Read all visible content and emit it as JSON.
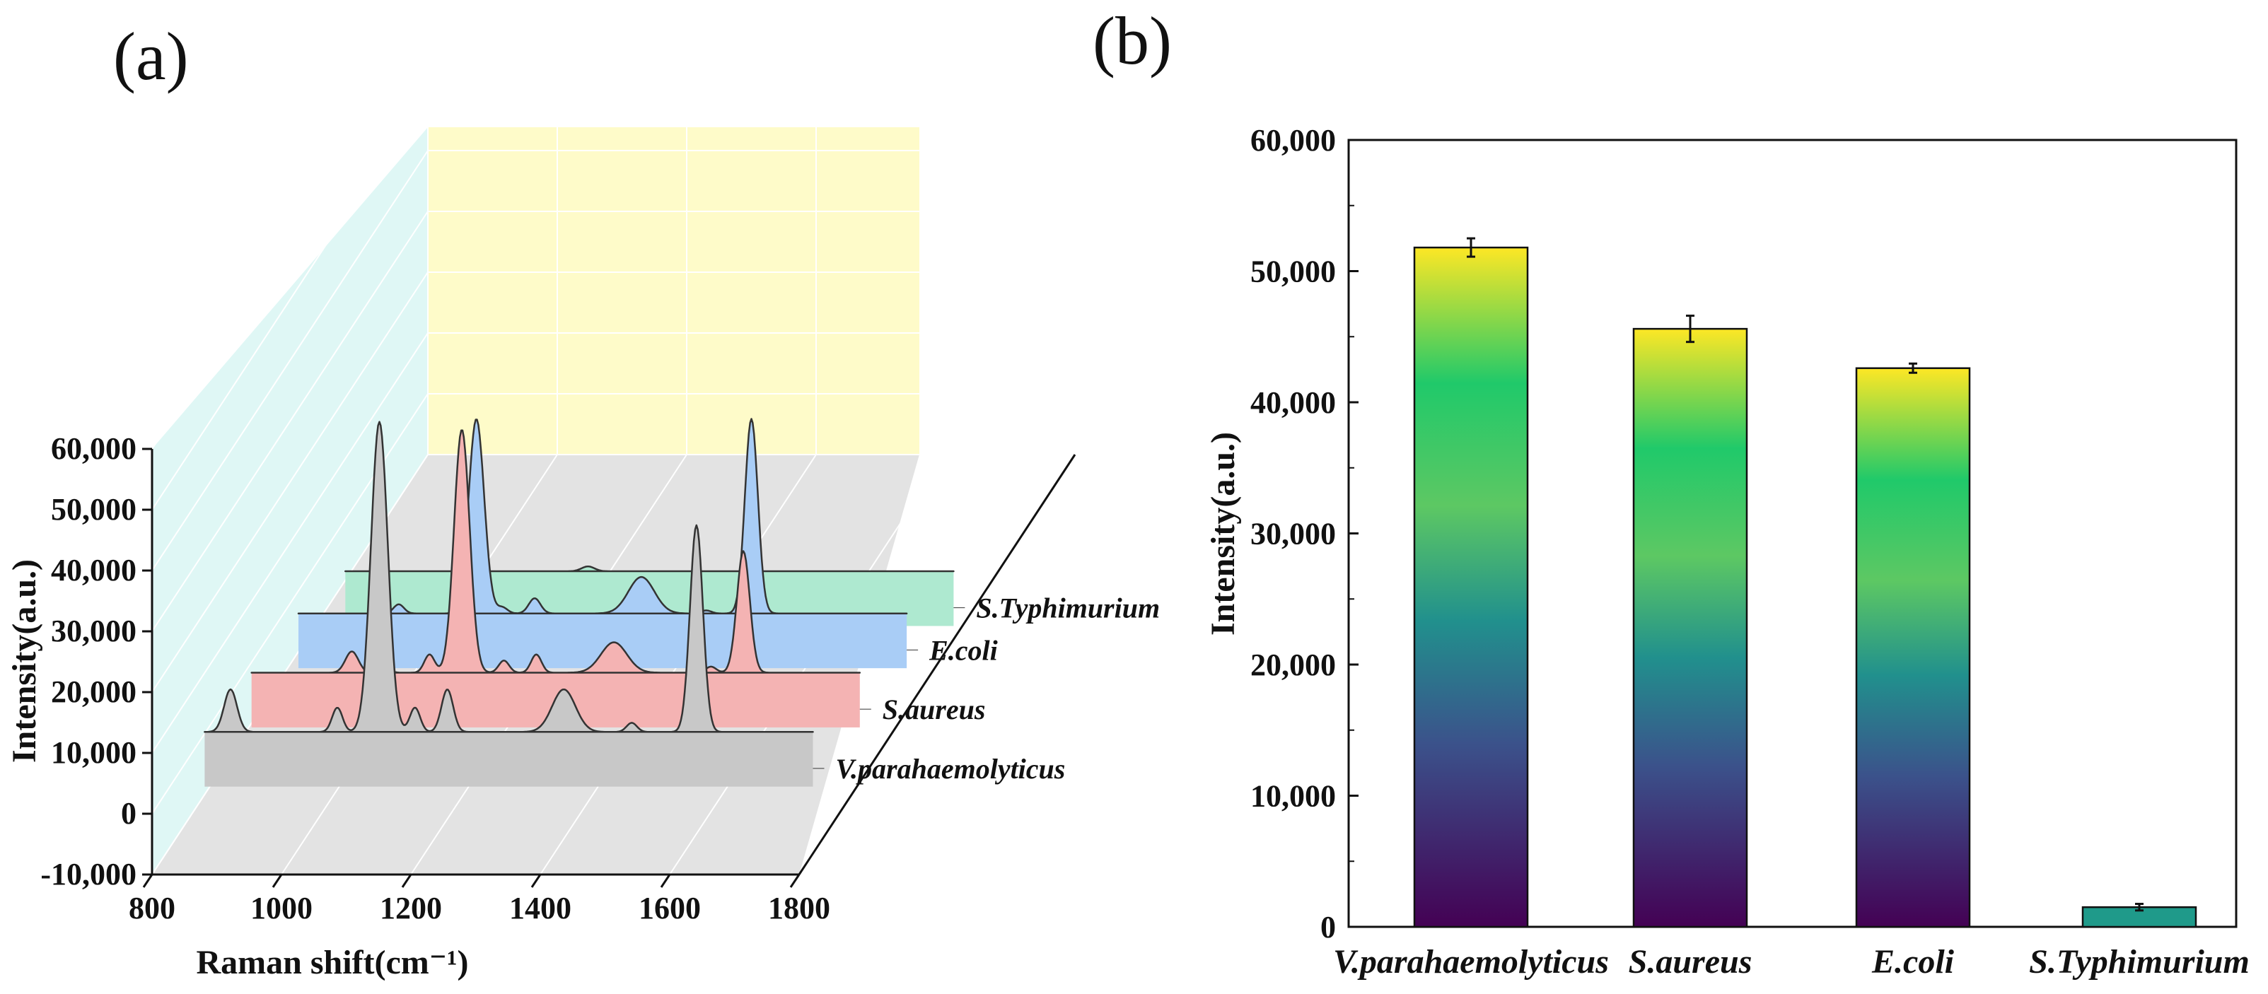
{
  "panel_a_label": "(a)",
  "panel_b_label": "(b)",
  "colors": {
    "fills": [
      "#c8c8c8",
      "#f4b3b3",
      "#a9cdf6",
      "#aee9d0"
    ],
    "back_wall": "#fefbc9",
    "side_wall": "#dff7f5",
    "floor": "#e3e3e3",
    "viridis": [
      "#440154",
      "#3b528b",
      "#21908d",
      "#5dc863",
      "#20c96a",
      "#fde725"
    ]
  },
  "chart_data": [
    {
      "type": "line",
      "title": "",
      "xlabel": "Raman shift(cm⁻¹)",
      "ylabel": "Intensity(a.u.)",
      "x_ticks": [
        "800",
        "1000",
        "1200",
        "1400",
        "1600",
        "1800"
      ],
      "y_ticks": [
        "-10,000",
        "0",
        "10,000",
        "20,000",
        "30,000",
        "40,000",
        "50,000",
        "60,000"
      ],
      "xlim": [
        800,
        1800
      ],
      "ylim": [
        -10000,
        60000
      ],
      "grid": true,
      "series": [
        {
          "name": "V.parahaemolyticus",
          "baseline": 10000,
          "peaks": [
            [
              900,
              7000,
              10
            ],
            [
              1065,
              4000,
              8
            ],
            [
              1130,
              51000,
              13
            ],
            [
              1185,
              4000,
              8
            ],
            [
              1235,
              7000,
              9
            ],
            [
              1415,
              7000,
              18
            ],
            [
              1520,
              1500,
              8
            ],
            [
              1620,
              34000,
              10
            ]
          ]
        },
        {
          "name": "S.aureus",
          "baseline": 8000,
          "peaks": [
            [
              1015,
              3500,
              10
            ],
            [
              1065,
              1000,
              8
            ],
            [
              1135,
              3000,
              8
            ],
            [
              1185,
              40000,
              12
            ],
            [
              1250,
              2000,
              8
            ],
            [
              1300,
              3000,
              8
            ],
            [
              1420,
              5000,
              20
            ],
            [
              1570,
              1000,
              8
            ],
            [
              1620,
              20000,
              10
            ]
          ]
        },
        {
          "name": "E.coli",
          "baseline": 6000,
          "peaks": [
            [
              1015,
              1500,
              8
            ],
            [
              1135,
              32000,
              12
            ],
            [
              1175,
              1000,
              8
            ],
            [
              1225,
              2500,
              9
            ],
            [
              1390,
              6000,
              20
            ],
            [
              1490,
              500,
              8
            ],
            [
              1560,
              32000,
              10
            ]
          ]
        },
        {
          "name": "S.Typhimurium",
          "baseline": 1200,
          "peaks": [
            [
              1235,
              800,
              10
            ]
          ]
        }
      ]
    },
    {
      "type": "bar",
      "title": "",
      "xlabel": "",
      "ylabel": "Intensity(a.u.)",
      "categories": [
        "V.parahaemolyticus",
        "S.aureus",
        "E.coli",
        "S.Typhimurium"
      ],
      "values": [
        51800,
        45600,
        42600,
        1500
      ],
      "errors": [
        700,
        1000,
        350,
        250
      ],
      "y_ticks": [
        "0",
        "10,000",
        "20,000",
        "30,000",
        "40,000",
        "50,000",
        "60,000"
      ],
      "ylim": [
        0,
        60000
      ],
      "grid": false
    }
  ]
}
